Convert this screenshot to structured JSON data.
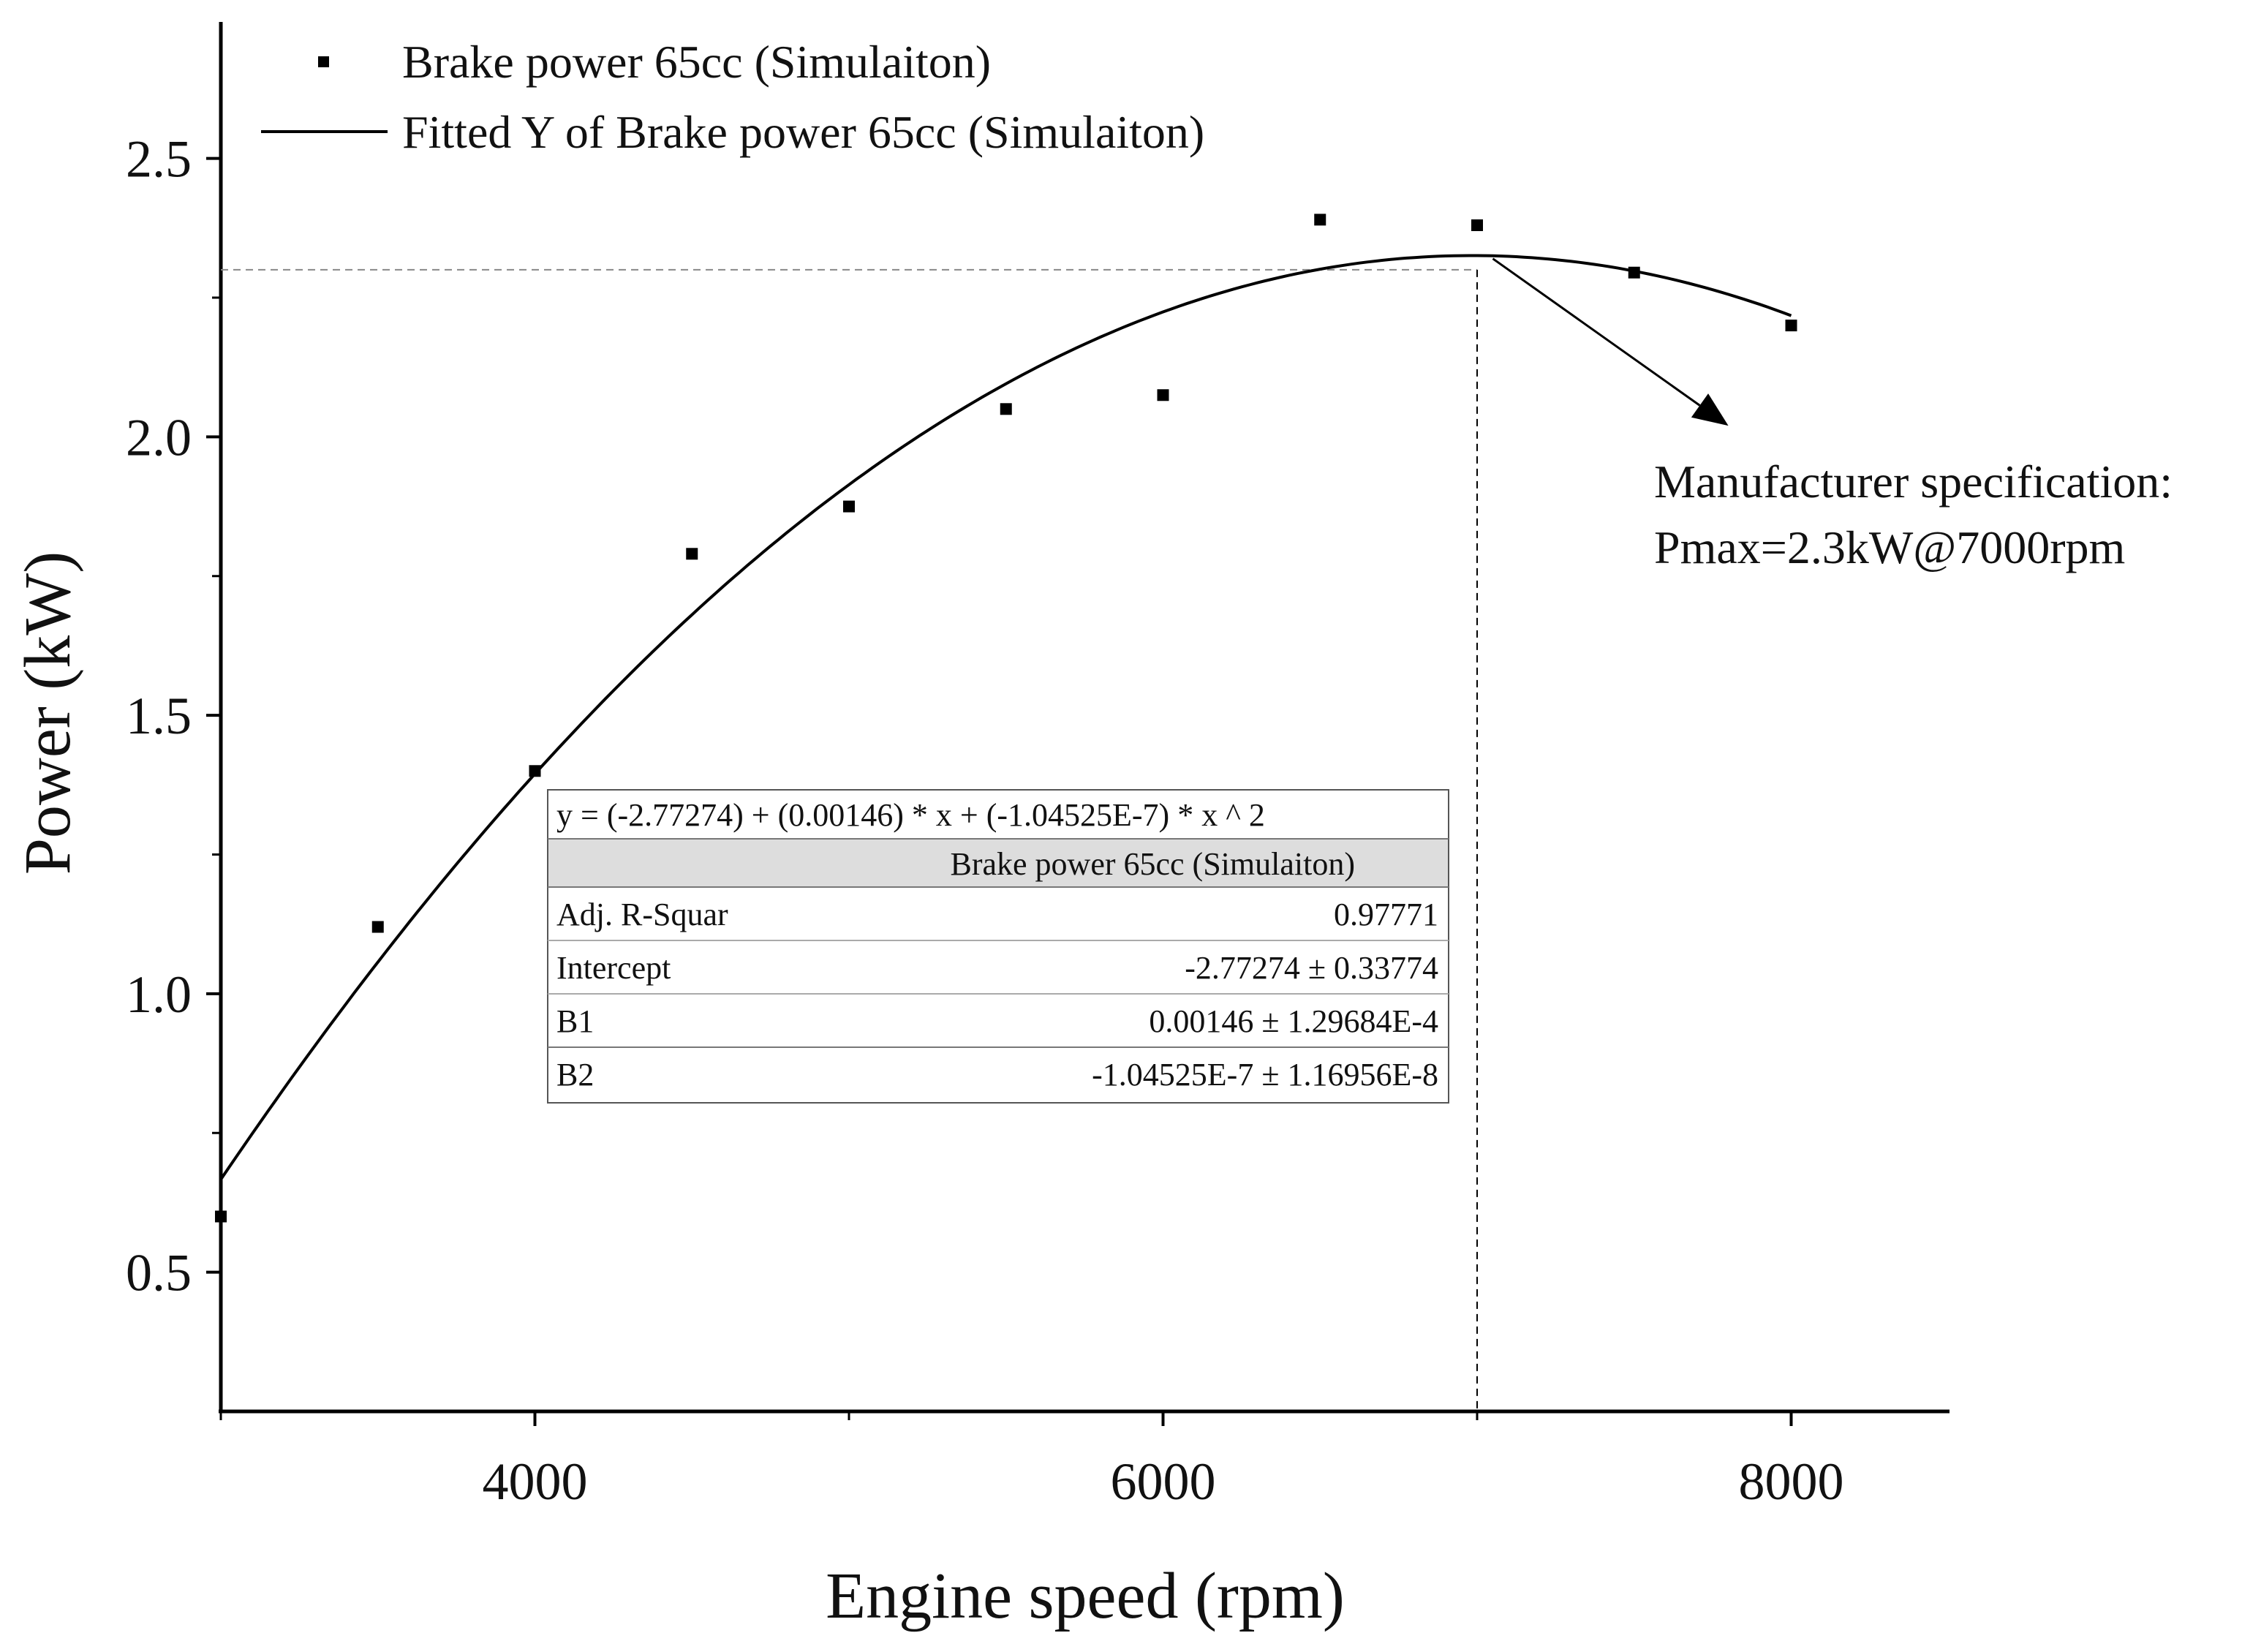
{
  "chart_data": {
    "type": "scatter",
    "title": "",
    "xlabel": "Engine speed (rpm)",
    "ylabel": "Power (kW)",
    "xlim": [
      3000,
      8500
    ],
    "ylim": [
      0.25,
      2.75
    ],
    "x_ticks": [
      4000,
      6000,
      8000
    ],
    "x_tick_labels": [
      "4000",
      "6000",
      "8000"
    ],
    "x_minor_ticks": [
      3000,
      5000,
      7000
    ],
    "y_ticks": [
      0.5,
      1.0,
      1.5,
      2.0,
      2.5
    ],
    "y_tick_labels": [
      "0.5",
      "1.0",
      "1.5",
      "2.0",
      "2.5"
    ],
    "y_minor_ticks": [
      0.75,
      1.25,
      1.75,
      2.25
    ],
    "grid": false,
    "legend_position": "top-left",
    "series": [
      {
        "name": "Brake power 65cc (Simulaiton)",
        "kind": "scatter",
        "color": "#000000",
        "x": [
          3000,
          3500,
          4000,
          4500,
          5000,
          5500,
          6000,
          6500,
          7000,
          7500,
          8000
        ],
        "y": [
          0.6,
          1.12,
          1.4,
          1.79,
          1.875,
          2.05,
          2.075,
          2.39,
          2.38,
          2.295,
          2.2
        ]
      },
      {
        "name": "Fitted Y of Brake power 65cc (Simulaiton)",
        "kind": "line",
        "color": "#000000",
        "fit": {
          "intercept": -2.77274,
          "b1": 0.00146,
          "b2": -1.04525e-07
        },
        "x_range": [
          3000,
          8000
        ]
      }
    ],
    "reference_lines": {
      "x": 7000,
      "y": 2.3
    },
    "annotation": {
      "lines": [
        "Manufacturer specification:",
        "Pmax=2.3kW@7000rpm"
      ],
      "arrow_from": {
        "x": 7050,
        "y": 2.32
      },
      "arrow_to": {
        "x": 7800,
        "y": 2.02
      }
    },
    "fit_table": {
      "equation": "y =  (-2.77274) + (0.00146) * x + (-1.04525E-7) * x ^ 2",
      "header": "Brake power 65cc (Simulaiton)",
      "rows": [
        {
          "label": "Adj. R-Squar",
          "value": "0.97771"
        },
        {
          "label": "Intercept",
          "value": "-2.77274 ± 0.33774"
        },
        {
          "label": "B1",
          "value": "0.00146 ± 1.29684E-4"
        },
        {
          "label": "B2",
          "value": "-1.04525E-7 ± 1.16956E-8"
        }
      ]
    }
  }
}
